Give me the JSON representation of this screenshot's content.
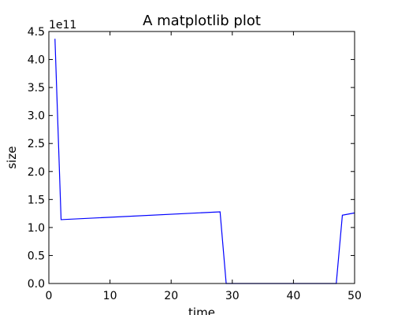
{
  "chart_data": {
    "type": "line",
    "title": "A matplotlib plot",
    "xlabel": "time",
    "ylabel": "size",
    "offset_label": "1e11",
    "xlim": [
      0,
      50
    ],
    "ylim": [
      0,
      450000000000
    ],
    "xticks": [
      0,
      10,
      20,
      30,
      40,
      50
    ],
    "xtick_labels": [
      "0",
      "10",
      "20",
      "30",
      "40",
      "50"
    ],
    "yticks": [
      0,
      50000000000,
      100000000000,
      150000000000,
      200000000000,
      250000000000,
      300000000000,
      350000000000,
      400000000000,
      450000000000
    ],
    "ytick_labels": [
      "0.0",
      "0.5",
      "1.0",
      "1.5",
      "2.0",
      "2.5",
      "3.0",
      "3.5",
      "4.0",
      "4.5"
    ],
    "grid": false,
    "series": [
      {
        "color": "#0000ff",
        "x": [
          1,
          2,
          28,
          29,
          47,
          48,
          50
        ],
        "y": [
          437000000000,
          114000000000,
          128000000000,
          0,
          0,
          122000000000,
          126000000000
        ]
      }
    ]
  }
}
